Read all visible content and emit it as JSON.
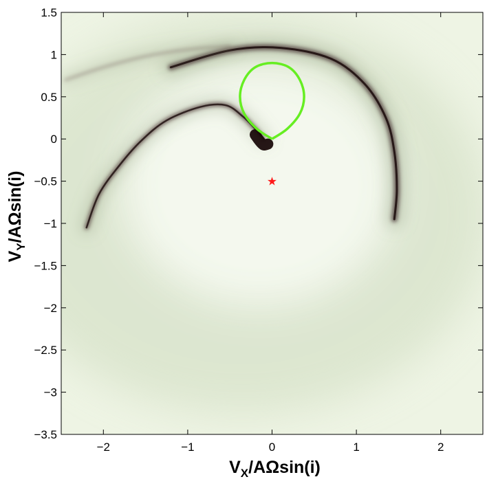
{
  "chart_data": {
    "type": "heatmap",
    "title": "",
    "xlabel": {
      "main": "V",
      "sub": "X",
      "rest": "/AΩsin(i)"
    },
    "ylabel": {
      "main": "V",
      "sub": "Y",
      "rest": "/AΩsin(i)"
    },
    "xlim": [
      -2.5,
      2.5
    ],
    "ylim": [
      -3.5,
      1.5
    ],
    "xticks": [
      -2,
      -1,
      0,
      1,
      2
    ],
    "xtick_labels": [
      "−2",
      "−1",
      "0",
      "1",
      "2"
    ],
    "yticks": [
      1.5,
      1,
      0.5,
      0,
      -0.5,
      -1,
      -1.5,
      -2,
      -2.5,
      -3,
      -3.5
    ],
    "ytick_labels": [
      "1.5",
      "1",
      "0.5",
      "0",
      "−0.5",
      "−1",
      "−1.5",
      "−2",
      "−2.5",
      "−3",
      "−3.5"
    ],
    "colormap": {
      "low": "#eef4e4",
      "mid": "#8c9a7a",
      "high": "#1a0b0b"
    },
    "features": [
      {
        "name": "outer arc",
        "points": [
          [
            -1.2,
            0.85
          ],
          [
            -0.5,
            1.05
          ],
          [
            0.1,
            1.08
          ],
          [
            0.7,
            0.95
          ],
          [
            1.1,
            0.65
          ],
          [
            1.35,
            0.25
          ],
          [
            1.45,
            -0.15
          ],
          [
            1.48,
            -0.6
          ],
          [
            1.45,
            -0.95
          ]
        ]
      },
      {
        "name": "inner arc",
        "points": [
          [
            -2.2,
            -1.05
          ],
          [
            -2.05,
            -0.65
          ],
          [
            -1.8,
            -0.3
          ],
          [
            -1.55,
            -0.02
          ],
          [
            -1.25,
            0.22
          ],
          [
            -0.85,
            0.38
          ],
          [
            -0.55,
            0.4
          ],
          [
            -0.35,
            0.27
          ],
          [
            -0.2,
            0.12
          ],
          [
            -0.1,
            0.0
          ]
        ]
      },
      {
        "name": "upper curl",
        "points": [
          [
            -2.45,
            0.7
          ],
          [
            -2.0,
            0.85
          ],
          [
            -1.5,
            0.98
          ],
          [
            -1.0,
            1.06
          ],
          [
            -0.5,
            1.1
          ]
        ]
      },
      {
        "name": "dark blob",
        "points": [
          [
            -0.2,
            0.05
          ],
          [
            -0.15,
            -0.02
          ],
          [
            -0.1,
            -0.07
          ],
          [
            -0.05,
            -0.06
          ]
        ]
      }
    ],
    "roche_lobe": {
      "color": "#66ee22",
      "points": [
        [
          0.0,
          0.0
        ],
        [
          0.18,
          0.12
        ],
        [
          0.33,
          0.3
        ],
        [
          0.38,
          0.5
        ],
        [
          0.33,
          0.7
        ],
        [
          0.2,
          0.85
        ],
        [
          0.0,
          0.9
        ],
        [
          -0.2,
          0.85
        ],
        [
          -0.33,
          0.7
        ],
        [
          -0.38,
          0.5
        ],
        [
          -0.33,
          0.3
        ],
        [
          -0.18,
          0.12
        ],
        [
          0.0,
          0.0
        ]
      ]
    },
    "star_marker": {
      "x": 0.0,
      "y": -0.5,
      "color": "#ff1a1a",
      "symbol": "★"
    },
    "grid": false,
    "legend": "none"
  }
}
